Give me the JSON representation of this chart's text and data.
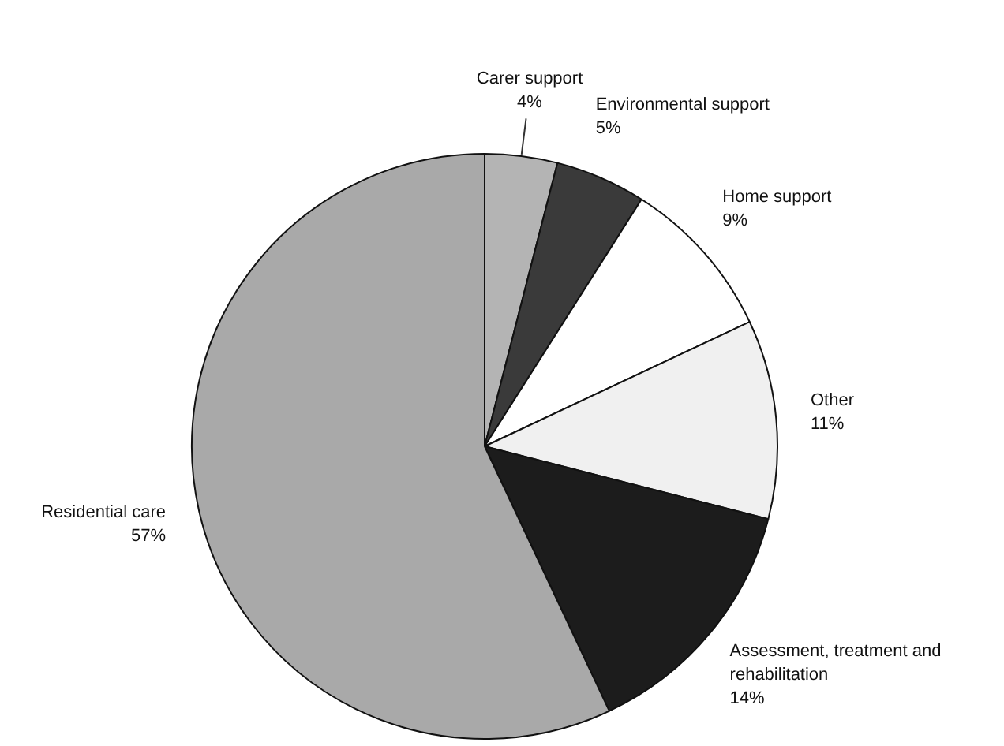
{
  "chart_data": {
    "type": "pie",
    "categories": [
      "Carer support",
      "Environmental support",
      "Home support",
      "Other",
      "Assessment, treatment and rehabilitation",
      "Residential care"
    ],
    "values": [
      4,
      5,
      9,
      11,
      14,
      57
    ],
    "value_labels": [
      "4%",
      "5%",
      "9%",
      "11%",
      "14%",
      "57%"
    ],
    "colors": [
      "#b4b4b4",
      "#3a3a3a",
      "#ffffff",
      "#f0f0f0",
      "#1c1c1c",
      "#a9a9a9"
    ]
  }
}
